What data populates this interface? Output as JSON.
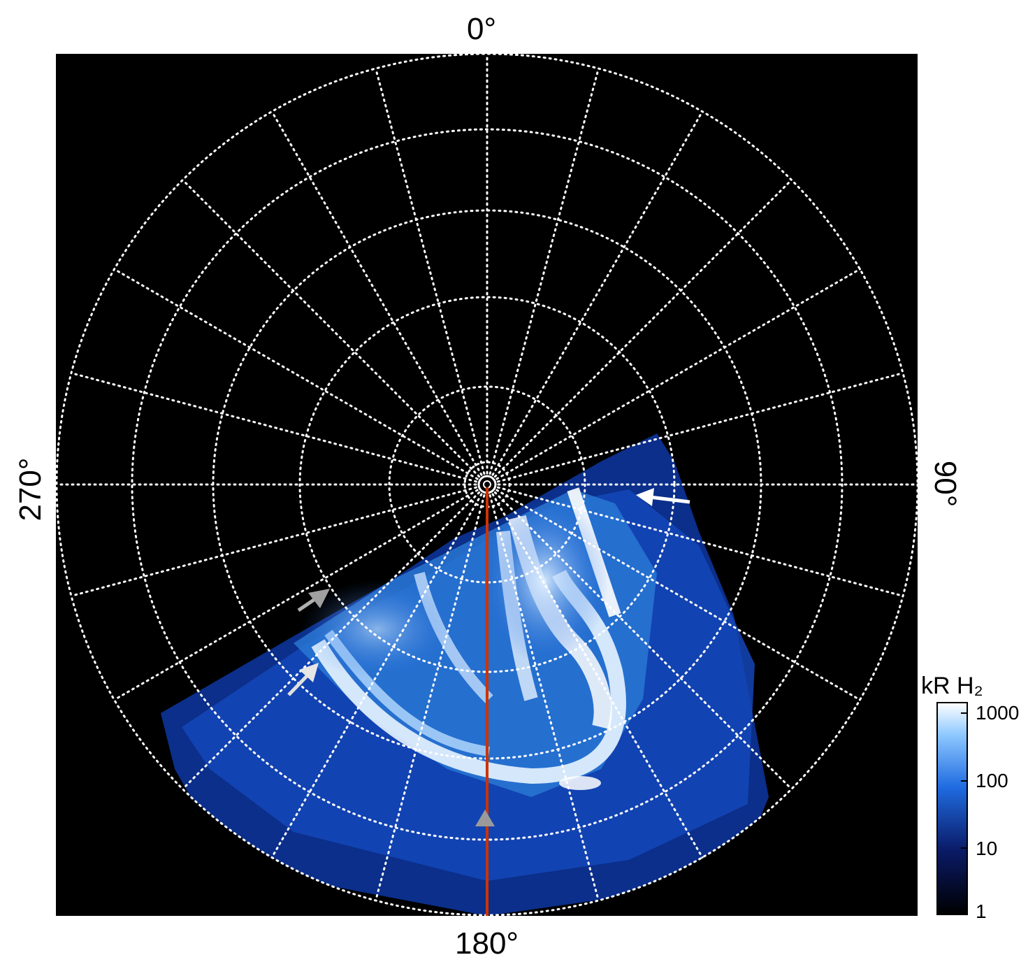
{
  "figure": {
    "angle_labels": {
      "top": "0°",
      "right": "90°",
      "bottom": "180°",
      "left": "270°"
    },
    "colorbar": {
      "title": "kR H₂",
      "ticks": [
        "1000",
        "100",
        "10",
        "1"
      ],
      "colors": [
        "#000000",
        "#0a1a66",
        "#1f6be0",
        "#8fc9ff",
        "#ffffff"
      ]
    },
    "grid_color": "#ffffff",
    "meridian_line_color": "#cc3300",
    "arrow_colors": {
      "white": "#ffffff",
      "gray": "#b0b0b0"
    }
  }
}
